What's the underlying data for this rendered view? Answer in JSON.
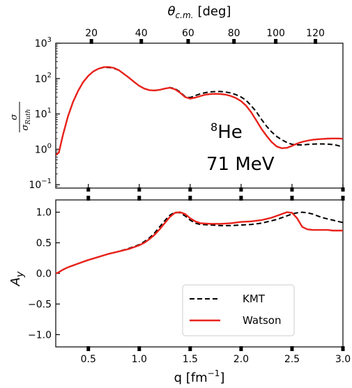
{
  "chart_data": [
    {
      "type": "line",
      "panel": "top",
      "ylabel_num": "σ",
      "ylabel_den": "σ",
      "ylabel_den_sub": "Ruth",
      "yscale": "log",
      "ylim": [
        0.08,
        1000
      ],
      "xlim": [
        0.18,
        3.0
      ],
      "yticks": [
        {
          "value": 1000,
          "base": "10",
          "exp": "3"
        },
        {
          "value": 100,
          "base": "10",
          "exp": "2"
        },
        {
          "value": 10,
          "base": "10",
          "exp": "1"
        },
        {
          "value": 1,
          "base": "10",
          "exp": "0"
        },
        {
          "value": 0.1,
          "base": "10",
          "exp": "−1"
        }
      ],
      "top_axis": {
        "label_base": "θ",
        "label_sub": "c.m.",
        "label_unit": "[deg]",
        "ticks": [
          {
            "deg": 20,
            "q": 0.53,
            "label": "20"
          },
          {
            "deg": 40,
            "q": 1.02,
            "label": "40"
          },
          {
            "deg": 60,
            "q": 1.48,
            "label": "60"
          },
          {
            "deg": 80,
            "q": 1.93,
            "label": "80"
          },
          {
            "deg": 100,
            "q": 2.34,
            "label": "100"
          },
          {
            "deg": 120,
            "q": 2.73,
            "label": "120"
          }
        ]
      },
      "annotations": {
        "isotope_mass": "8",
        "isotope_symbol": "He",
        "energy": "71 MeV"
      },
      "series": [
        {
          "name": "KMT",
          "style": "dashed",
          "color": "#000000",
          "x": [
            0.18,
            0.21,
            0.25,
            0.3,
            0.35,
            0.4,
            0.45,
            0.5,
            0.55,
            0.6,
            0.65,
            0.7,
            0.75,
            0.8,
            0.85,
            0.9,
            0.95,
            1.0,
            1.05,
            1.1,
            1.15,
            1.2,
            1.25,
            1.3,
            1.35,
            1.4,
            1.45,
            1.5,
            1.55,
            1.6,
            1.65,
            1.7,
            1.75,
            1.8,
            1.85,
            1.9,
            1.95,
            2.0,
            2.05,
            2.1,
            2.15,
            2.2,
            2.25,
            2.3,
            2.35,
            2.4,
            2.45,
            2.5,
            2.55,
            2.6,
            2.65,
            2.7,
            2.75,
            2.8,
            2.85,
            2.9,
            2.95,
            3.0
          ],
          "y": [
            0.7,
            0.8,
            2.5,
            8.5,
            22,
            45,
            80,
            120,
            160,
            190,
            205,
            205,
            195,
            170,
            135,
            105,
            80,
            62,
            52,
            47,
            46,
            48,
            52,
            56,
            52,
            42,
            31,
            29,
            33,
            37,
            40,
            42,
            43,
            43,
            41.5,
            39,
            35,
            30,
            24,
            17,
            11.5,
            7,
            4.5,
            3.1,
            2.3,
            1.85,
            1.55,
            1.38,
            1.33,
            1.33,
            1.37,
            1.4,
            1.42,
            1.42,
            1.4,
            1.36,
            1.28,
            1.15
          ]
        },
        {
          "name": "Watson",
          "style": "solid",
          "color": "#e8221b",
          "x": [
            0.18,
            0.21,
            0.25,
            0.3,
            0.35,
            0.4,
            0.45,
            0.5,
            0.55,
            0.6,
            0.65,
            0.7,
            0.75,
            0.8,
            0.85,
            0.9,
            0.95,
            1.0,
            1.05,
            1.1,
            1.15,
            1.2,
            1.25,
            1.3,
            1.35,
            1.4,
            1.45,
            1.5,
            1.55,
            1.6,
            1.65,
            1.7,
            1.75,
            1.8,
            1.85,
            1.9,
            1.95,
            2.0,
            2.05,
            2.1,
            2.15,
            2.2,
            2.25,
            2.3,
            2.35,
            2.4,
            2.45,
            2.5,
            2.55,
            2.6,
            2.65,
            2.7,
            2.75,
            2.8,
            2.85,
            2.9,
            2.95,
            3.0
          ],
          "y": [
            0.7,
            0.8,
            2.5,
            8.5,
            22,
            45,
            80,
            120,
            160,
            190,
            210,
            212,
            200,
            172,
            135,
            105,
            80,
            62,
            52,
            47,
            46,
            48,
            52,
            55,
            50,
            40,
            30,
            27,
            29,
            32,
            35,
            36.5,
            37,
            36.5,
            35,
            32,
            28,
            23,
            17,
            11,
            6.5,
            3.8,
            2.4,
            1.6,
            1.2,
            1.07,
            1.1,
            1.25,
            1.45,
            1.62,
            1.75,
            1.85,
            1.92,
            1.97,
            2.0,
            2.02,
            2.02,
            1.98
          ]
        }
      ]
    },
    {
      "type": "line",
      "panel": "bottom",
      "ylabel_base": "A",
      "ylabel_sub": "y",
      "xlabel_base": "q [fm",
      "xlabel_exp": "−1",
      "xlabel_end": "]",
      "xlim": [
        0.18,
        3.0
      ],
      "ylim": [
        -1.2,
        1.2
      ],
      "xticks": [
        {
          "value": 0.5,
          "label": "0.5"
        },
        {
          "value": 1.0,
          "label": "1.0"
        },
        {
          "value": 1.5,
          "label": "1.5"
        },
        {
          "value": 2.0,
          "label": "2.0"
        },
        {
          "value": 2.5,
          "label": "2.5"
        },
        {
          "value": 3.0,
          "label": "3.0"
        }
      ],
      "yticks": [
        {
          "value": 1.0,
          "label": "1.0"
        },
        {
          "value": 0.5,
          "label": "0.5"
        },
        {
          "value": 0.0,
          "label": "0.0"
        },
        {
          "value": -0.5,
          "label": "−0.5"
        },
        {
          "value": -1.0,
          "label": "−1.0"
        }
      ],
      "legend": {
        "placement": "lower-center",
        "entries": [
          {
            "label": "KMT",
            "style": "dashed",
            "color": "#000000"
          },
          {
            "label": "Watson",
            "style": "solid",
            "color": "#e8221b"
          }
        ]
      },
      "series": [
        {
          "name": "KMT",
          "style": "dashed",
          "color": "#000000",
          "x": [
            0.18,
            0.2,
            0.25,
            0.3,
            0.4,
            0.5,
            0.6,
            0.7,
            0.8,
            0.9,
            1.0,
            1.05,
            1.1,
            1.15,
            1.2,
            1.25,
            1.3,
            1.35,
            1.4,
            1.45,
            1.5,
            1.55,
            1.6,
            1.7,
            1.8,
            1.9,
            2.0,
            2.1,
            2.2,
            2.3,
            2.35,
            2.4,
            2.45,
            2.5,
            2.55,
            2.6,
            2.65,
            2.7,
            2.75,
            2.8,
            2.85,
            2.9,
            2.95,
            3.0
          ],
          "y": [
            0.0,
            0.01,
            0.06,
            0.1,
            0.16,
            0.22,
            0.27,
            0.32,
            0.36,
            0.41,
            0.47,
            0.52,
            0.58,
            0.66,
            0.76,
            0.86,
            0.95,
            1.0,
            0.99,
            0.94,
            0.87,
            0.82,
            0.8,
            0.79,
            0.78,
            0.78,
            0.79,
            0.8,
            0.82,
            0.86,
            0.88,
            0.91,
            0.94,
            0.97,
            0.99,
            1.0,
            0.99,
            0.97,
            0.94,
            0.91,
            0.89,
            0.87,
            0.85,
            0.83
          ]
        },
        {
          "name": "Watson",
          "style": "solid",
          "color": "#e8221b",
          "x": [
            0.18,
            0.2,
            0.25,
            0.3,
            0.4,
            0.5,
            0.6,
            0.7,
            0.8,
            0.9,
            1.0,
            1.05,
            1.1,
            1.15,
            1.2,
            1.25,
            1.3,
            1.35,
            1.4,
            1.45,
            1.5,
            1.55,
            1.6,
            1.7,
            1.8,
            1.9,
            2.0,
            2.1,
            2.2,
            2.3,
            2.35,
            2.4,
            2.45,
            2.5,
            2.55,
            2.6,
            2.65,
            2.7,
            2.75,
            2.8,
            2.85,
            2.9,
            2.95,
            3.0
          ],
          "y": [
            0.0,
            0.01,
            0.06,
            0.1,
            0.16,
            0.22,
            0.27,
            0.32,
            0.36,
            0.4,
            0.46,
            0.5,
            0.56,
            0.63,
            0.72,
            0.82,
            0.92,
            0.99,
            1.0,
            0.97,
            0.9,
            0.85,
            0.82,
            0.81,
            0.81,
            0.82,
            0.84,
            0.85,
            0.87,
            0.91,
            0.94,
            0.97,
            1.0,
            0.99,
            0.9,
            0.76,
            0.72,
            0.71,
            0.71,
            0.71,
            0.71,
            0.7,
            0.7,
            0.7
          ]
        }
      ]
    }
  ]
}
